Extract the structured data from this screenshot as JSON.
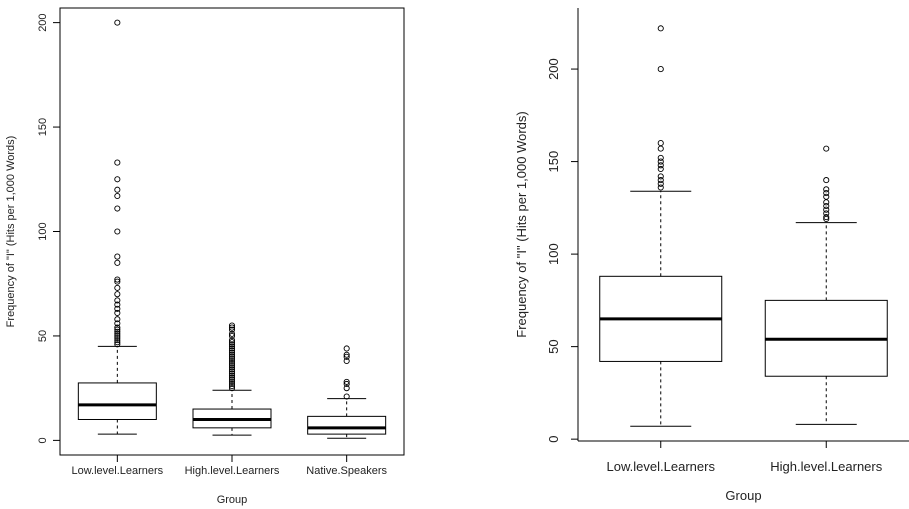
{
  "chart_data": [
    {
      "type": "box",
      "xlabel": "Group",
      "ylabel": "Frequency of \"I\" (Hits per 1,000 Words)",
      "ylim": [
        -7,
        207
      ],
      "yticks": [
        0,
        50,
        100,
        150,
        200
      ],
      "categories": [
        "Low.level.Learners",
        "High.level.Learners",
        "Native.Speakers"
      ],
      "boxes": [
        {
          "lower_whisker": 3,
          "q1": 10,
          "median": 17,
          "q3": 27.5,
          "upper_whisker": 45,
          "outliers": [
            200,
            133,
            125,
            120,
            117,
            111,
            100,
            88,
            85,
            77,
            76,
            73,
            70,
            67,
            65,
            63,
            61,
            58,
            56,
            54,
            53,
            52,
            51,
            50,
            49,
            48,
            47,
            46
          ]
        },
        {
          "lower_whisker": 2.5,
          "q1": 6,
          "median": 10,
          "q3": 15,
          "upper_whisker": 24,
          "outliers": [
            55,
            54,
            53,
            51,
            50,
            48,
            47,
            46,
            45,
            44,
            43,
            42,
            41,
            40,
            39,
            38,
            37,
            36,
            35,
            34,
            33,
            32,
            31,
            30,
            29,
            28,
            27,
            26,
            25
          ]
        },
        {
          "lower_whisker": 1,
          "q1": 3,
          "median": 6,
          "q3": 11.5,
          "upper_whisker": 20,
          "outliers": [
            44,
            41,
            40,
            38,
            28,
            27,
            25,
            21
          ]
        }
      ]
    },
    {
      "type": "box",
      "xlabel": "Group",
      "ylabel": "Frequency of \"I\" (Hits per 1,000 Words)",
      "ylim": [
        -1,
        233
      ],
      "yticks": [
        0,
        50,
        100,
        150,
        200
      ],
      "categories": [
        "Low.level.Learners",
        "High.level.Learners"
      ],
      "boxes": [
        {
          "lower_whisker": 7,
          "q1": 42,
          "median": 65,
          "q3": 88,
          "upper_whisker": 134,
          "outliers": [
            222,
            200,
            160,
            157,
            152,
            150,
            148,
            146,
            142,
            140,
            138,
            136
          ]
        },
        {
          "lower_whisker": 8,
          "q1": 34,
          "median": 54,
          "q3": 75,
          "upper_whisker": 117,
          "outliers": [
            157,
            140,
            135,
            133,
            131,
            128,
            126,
            124,
            122,
            120,
            119
          ]
        }
      ]
    }
  ]
}
